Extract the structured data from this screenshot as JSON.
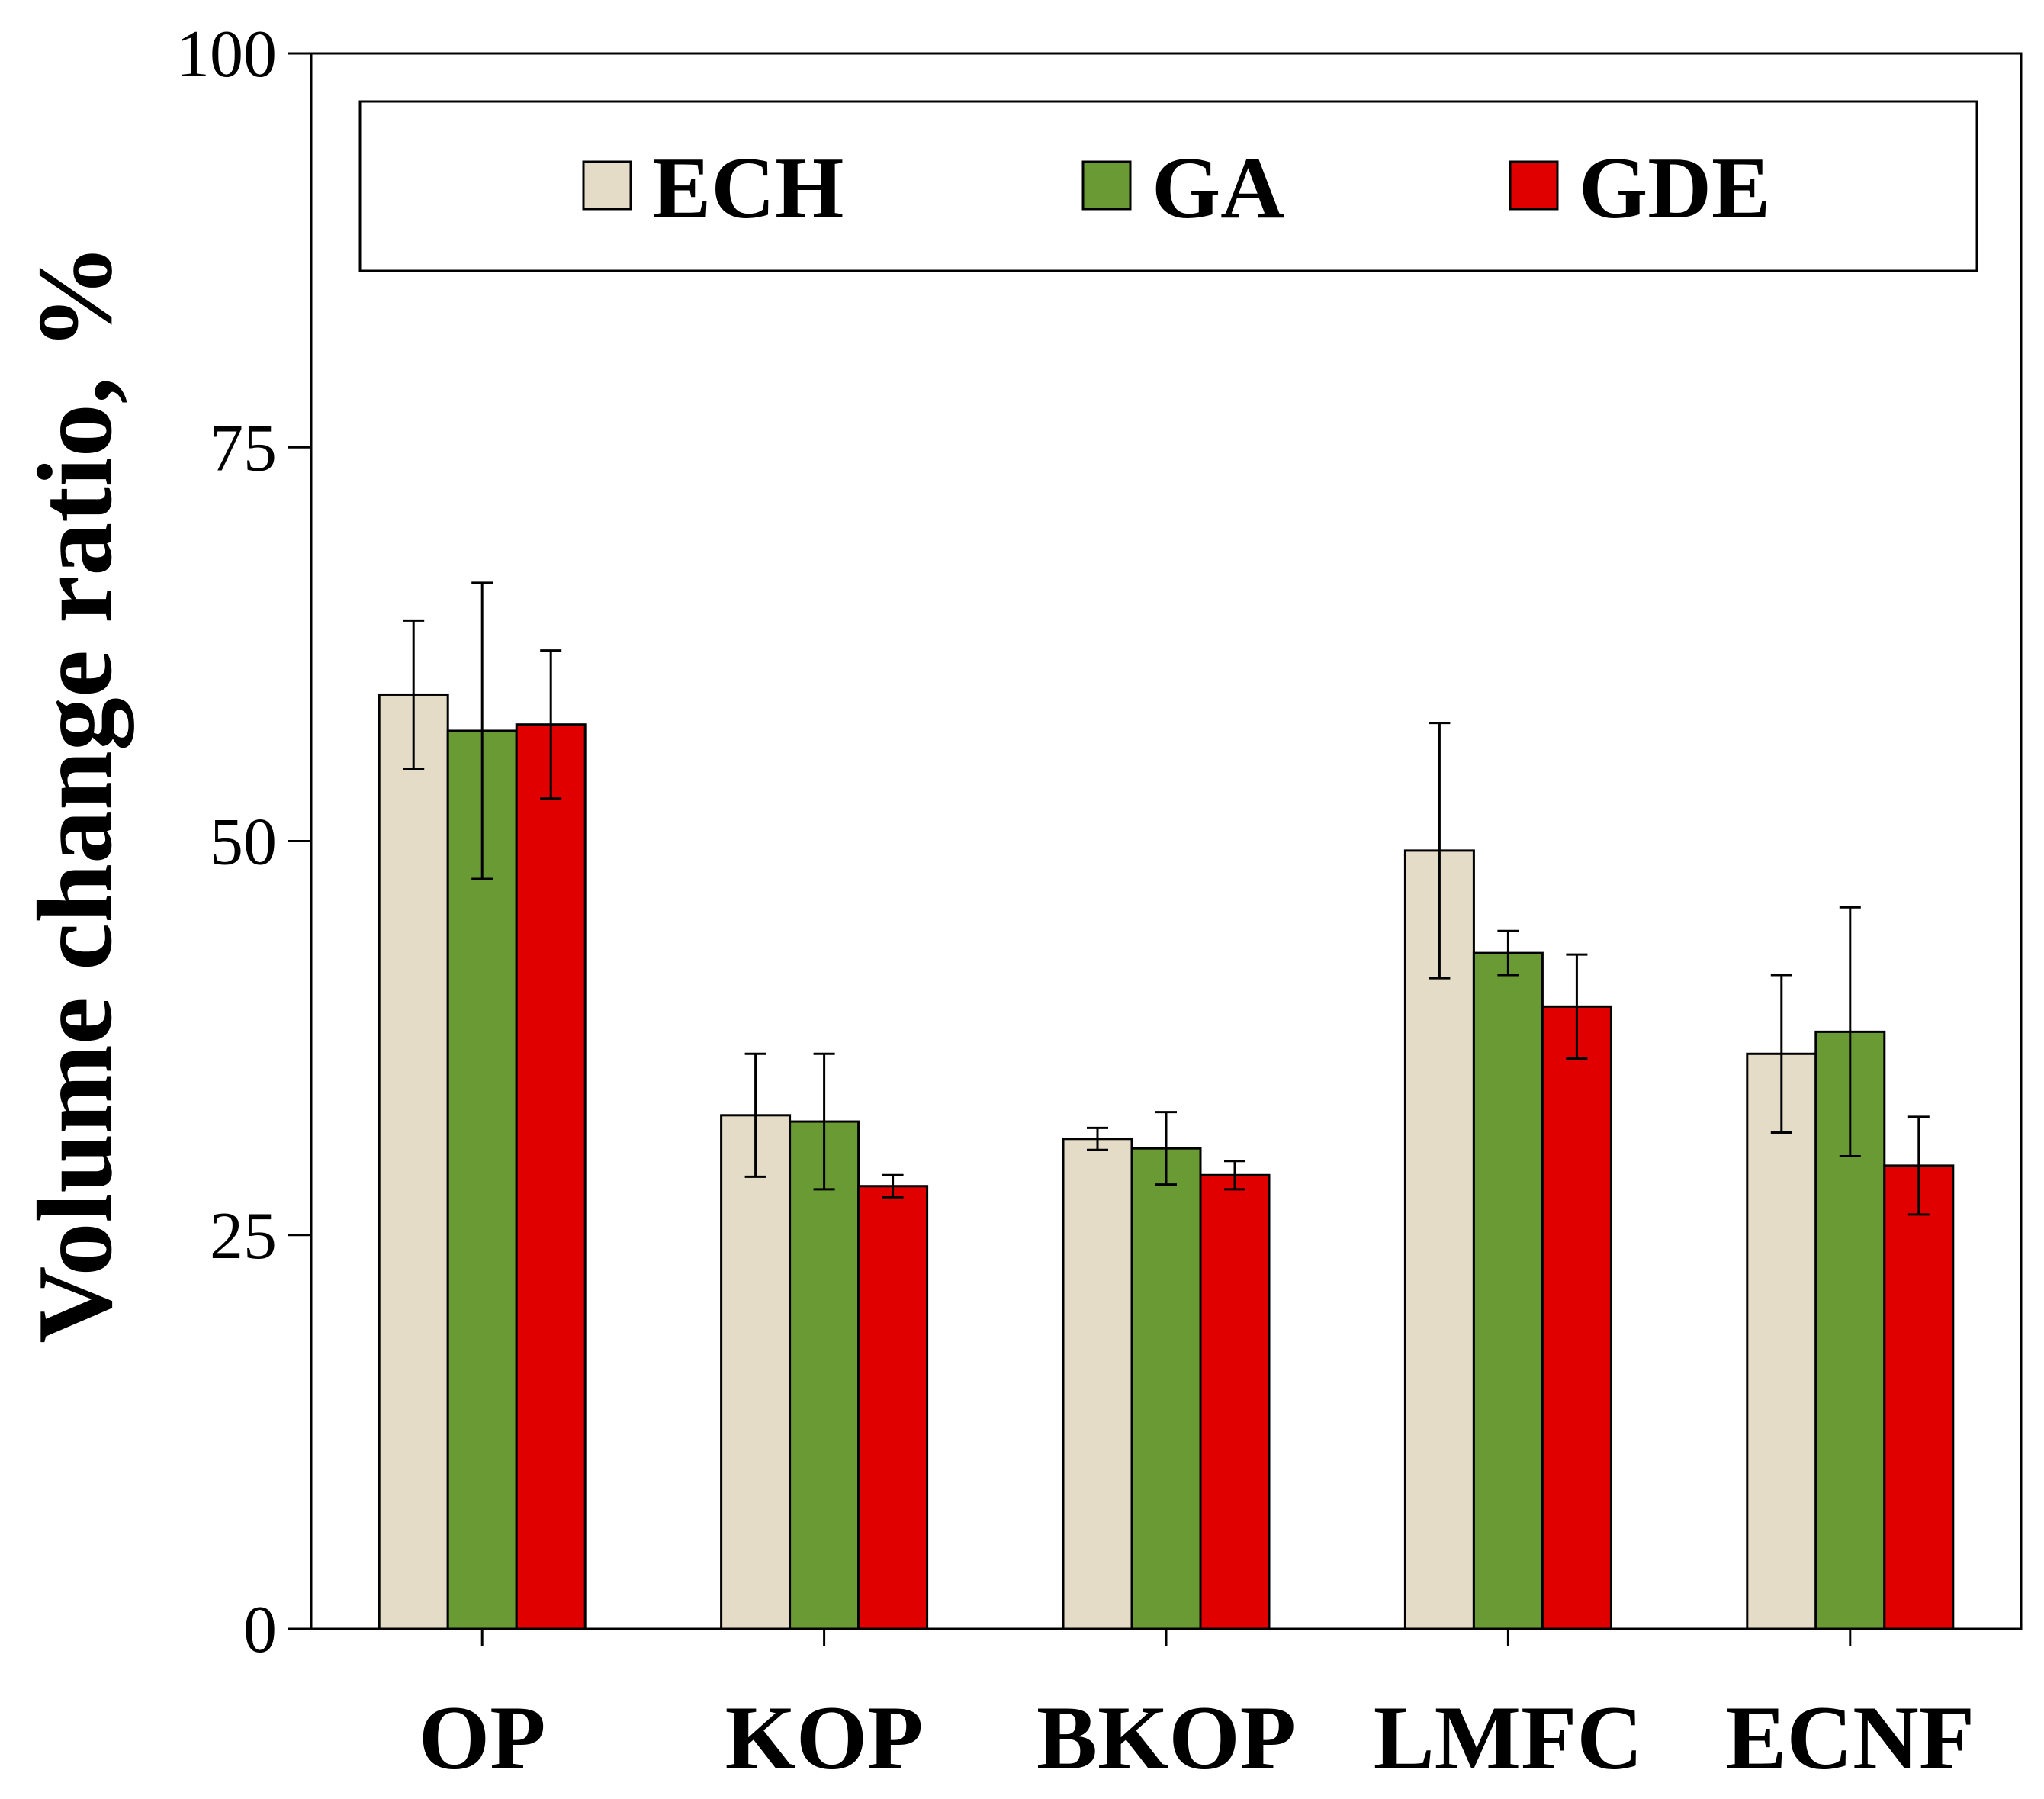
{
  "chart_data": {
    "type": "bar",
    "title": "",
    "xlabel": "",
    "ylabel": "Volume change ratio, %",
    "ylim": [
      0,
      100
    ],
    "yticks": [
      0,
      25,
      50,
      75,
      100
    ],
    "grid": false,
    "legend_position": "top",
    "categories": [
      "OP",
      "KOP",
      "BKOP",
      "LMFC",
      "ECNF"
    ],
    "series": [
      {
        "name": "ECH",
        "color": "#e4dcc6",
        "values": [
          59.3,
          32.6,
          31.1,
          49.4,
          36.5
        ],
        "errors": [
          4.7,
          3.9,
          0.7,
          8.1,
          5.0
        ]
      },
      {
        "name": "GA",
        "color": "#6a9a34",
        "values": [
          57.0,
          32.2,
          30.5,
          42.9,
          37.9
        ],
        "errors": [
          9.4,
          4.3,
          2.3,
          1.4,
          7.9
        ]
      },
      {
        "name": "GDE",
        "color": "#e00000",
        "values": [
          57.4,
          28.1,
          28.8,
          39.5,
          29.4
        ],
        "errors": [
          4.7,
          0.7,
          0.9,
          3.3,
          3.1
        ]
      }
    ]
  }
}
